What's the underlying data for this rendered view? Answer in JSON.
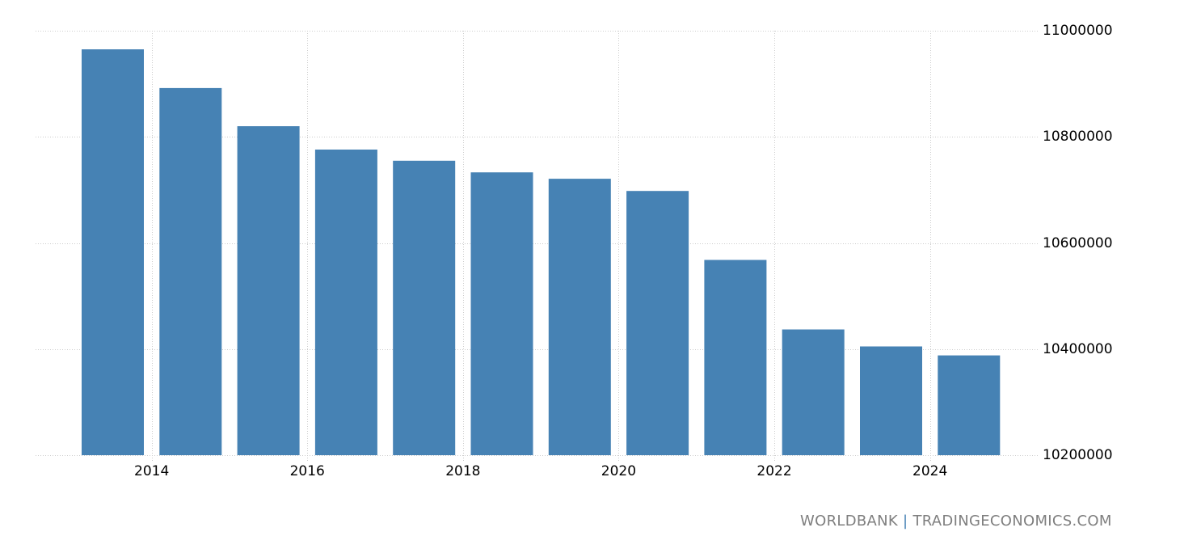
{
  "credit": {
    "left": "WORLDBANK",
    "separator": "|",
    "right": "TRADINGECONOMICS.COM"
  },
  "colors": {
    "bar": "#4682b4",
    "grid": "#cccccc",
    "credit_text": "#7f7f7f"
  },
  "chart_data": {
    "type": "bar",
    "title": "",
    "xlabel": "",
    "ylabel": "",
    "categories": [
      "2013",
      "2014",
      "2015",
      "2016",
      "2017",
      "2018",
      "2019",
      "2020",
      "2021",
      "2022",
      "2023",
      "2024"
    ],
    "values": [
      10965000,
      10892000,
      10820000,
      10776000,
      10755000,
      10733000,
      10721000,
      10698000,
      10568000,
      10437000,
      10405000,
      10388000
    ],
    "x_tick_labels": [
      "2014",
      "2016",
      "2018",
      "2020",
      "2022",
      "2024"
    ],
    "y_tick_labels": [
      "11000000",
      "10800000",
      "10600000",
      "10400000",
      "10200000"
    ],
    "y_ticks": [
      11000000,
      10800000,
      10600000,
      10400000,
      10200000
    ],
    "ylim": [
      10200000,
      11000000
    ],
    "grid": true,
    "y_axis_position": "right",
    "legend": null
  }
}
